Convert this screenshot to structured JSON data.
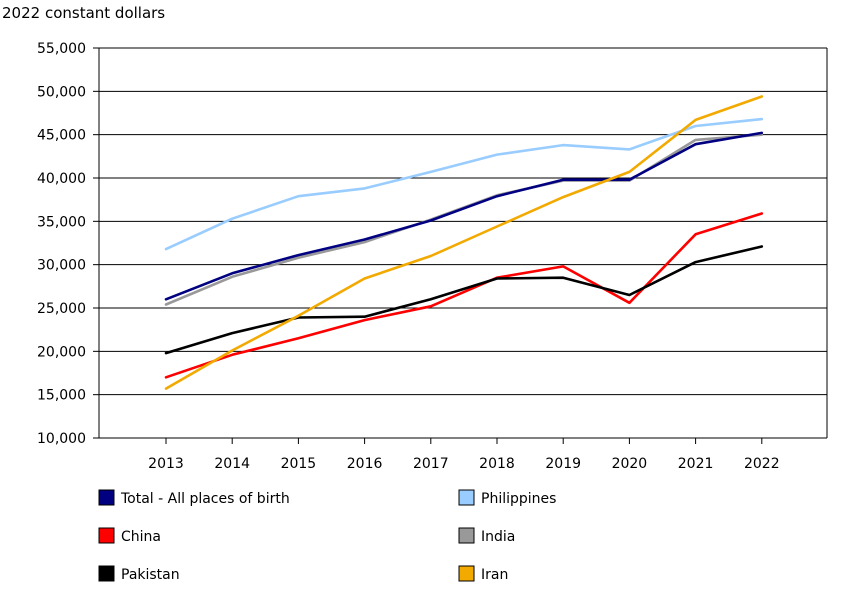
{
  "chart_data": {
    "type": "line",
    "title": "",
    "unit_label": "2022 constant dollars",
    "xlabel": "",
    "ylabel": "",
    "x": [
      "2013",
      "2014",
      "2015",
      "2016",
      "2017",
      "2018",
      "2019",
      "2020",
      "2021",
      "2022"
    ],
    "ylim": [
      10000,
      55000
    ],
    "yticks": [
      10000,
      15000,
      20000,
      25000,
      30000,
      35000,
      40000,
      45000,
      50000,
      55000
    ],
    "ytick_labels": [
      "10,000",
      "15,000",
      "20,000",
      "25,000",
      "30,000",
      "35,000",
      "40,000",
      "45,000",
      "50,000",
      "55,000"
    ],
    "grid": "horizontal",
    "legend_position": "bottom",
    "series": [
      {
        "name": "Total - All places of birth",
        "color": "#000080",
        "values": [
          26000,
          29000,
          31100,
          32900,
          35100,
          37900,
          39800,
          39800,
          43900,
          45200
        ]
      },
      {
        "name": "Philippines",
        "color": "#99CCFF",
        "values": [
          31800,
          35300,
          37900,
          38800,
          40700,
          42700,
          43800,
          43300,
          46000,
          46800
        ]
      },
      {
        "name": "China",
        "color": "#FF0000",
        "values": [
          17000,
          19600,
          21500,
          23600,
          25200,
          28500,
          29800,
          25600,
          33500,
          35900
        ]
      },
      {
        "name": "India",
        "color": "#999999",
        "values": [
          25400,
          28600,
          30800,
          32600,
          35200,
          38000,
          39700,
          39700,
          44400,
          45000
        ]
      },
      {
        "name": "Pakistan",
        "color": "#000000",
        "values": [
          19800,
          22100,
          23900,
          24000,
          26000,
          28400,
          28500,
          26500,
          30300,
          32100
        ]
      },
      {
        "name": "Iran",
        "color": "#F2A900",
        "values": [
          15700,
          20100,
          24100,
          28400,
          31000,
          34400,
          37800,
          40700,
          46700,
          49400
        ]
      }
    ]
  }
}
